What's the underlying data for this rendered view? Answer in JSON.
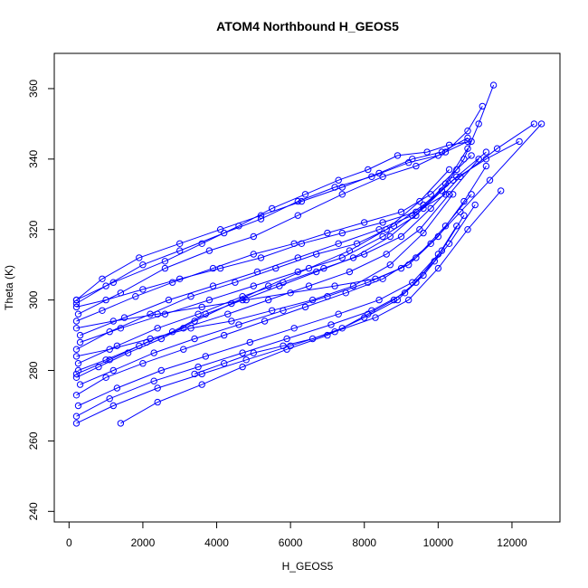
{
  "chart_data": {
    "type": "line",
    "title": "ATOM4 Northbound H_GEOS5",
    "xlabel": "H_GEOS5",
    "ylabel": "Theta (K)",
    "xlim": [
      -400,
      13300
    ],
    "ylim": [
      237,
      370
    ],
    "x_ticks": [
      0,
      2000,
      4000,
      6000,
      8000,
      10000,
      12000
    ],
    "y_ticks": [
      240,
      260,
      280,
      300,
      320,
      340,
      360
    ],
    "grid": false,
    "legend": "none",
    "color": "#0000ff",
    "series": [
      {
        "x": [
          200,
          1200,
          2600,
          3600,
          4600,
          5500,
          6400,
          7300,
          8100,
          8900,
          9700,
          10300,
          10900
        ],
        "y": [
          300,
          305,
          311,
          316,
          321,
          326,
          330,
          334,
          337,
          341,
          342,
          344,
          345
        ]
      },
      {
        "x": [
          200,
          1000,
          2000,
          3000,
          4200,
          5200,
          6200,
          7200,
          8200,
          9200,
          10000,
          10800
        ],
        "y": [
          299,
          304,
          310,
          314,
          319,
          323,
          328,
          332,
          335,
          339,
          341,
          345
        ]
      },
      {
        "x": [
          250,
          1400,
          2600,
          3800,
          5000,
          6200,
          7400,
          8500,
          9400,
          10200,
          10800,
          11200
        ],
        "y": [
          296,
          302,
          309,
          314,
          318,
          324,
          330,
          335,
          338,
          342,
          348,
          355
        ]
      },
      {
        "x": [
          200,
          900,
          1800,
          2800,
          3900,
          5000,
          6100,
          7000,
          8000,
          9000,
          9800,
          10500,
          10900
        ],
        "y": [
          294,
          297,
          301,
          305,
          309,
          313,
          316,
          319,
          322,
          325,
          330,
          337,
          341
        ]
      },
      {
        "x": [
          300,
          1500,
          2700,
          3900,
          5100,
          6200,
          7300,
          8400,
          9300,
          10100,
          10700,
          11100,
          11500
        ],
        "y": [
          290,
          295,
          300,
          304,
          308,
          312,
          316,
          320,
          324,
          331,
          340,
          350,
          361
        ]
      },
      {
        "x": [
          200,
          1100,
          2200,
          3300,
          4500,
          5600,
          6700,
          7800,
          8800,
          9600,
          10400,
          11300,
          12200
        ],
        "y": [
          286,
          291,
          296,
          301,
          305,
          309,
          313,
          316,
          321,
          327,
          334,
          340,
          345
        ]
      },
      {
        "x": [
          250,
          1300,
          2400,
          3500,
          4700,
          5800,
          6900,
          8000,
          9000,
          9800,
          10600,
          11600,
          12600
        ],
        "y": [
          282,
          287,
          292,
          296,
          301,
          305,
          309,
          313,
          318,
          326,
          335,
          343,
          350
        ]
      },
      {
        "x": [
          200,
          1100,
          2100,
          3100,
          4300,
          5400,
          6500,
          7600,
          8600,
          9500,
          10300,
          11100
        ],
        "y": [
          279,
          283,
          288,
          292,
          296,
          300,
          304,
          308,
          313,
          320,
          330,
          340
        ]
      },
      {
        "x": [
          300,
          1200,
          2300,
          3400,
          4600,
          5800,
          7000,
          8100,
          9000,
          9800,
          10600,
          11400,
          12800
        ],
        "y": [
          276,
          280,
          285,
          289,
          293,
          297,
          301,
          305,
          309,
          316,
          325,
          334,
          350
        ]
      },
      {
        "x": [
          200,
          1000,
          2000,
          3100,
          4200,
          5300,
          6400,
          7500,
          8500,
          9400,
          10200,
          10900
        ],
        "y": [
          273,
          278,
          282,
          286,
          290,
          294,
          298,
          302,
          306,
          312,
          321,
          330
        ]
      },
      {
        "x": [
          250,
          1300,
          2500,
          3700,
          4900,
          6100,
          7300,
          8400,
          9300,
          10100,
          10700
        ],
        "y": [
          270,
          275,
          280,
          284,
          288,
          292,
          296,
          300,
          305,
          314,
          324
        ]
      },
      {
        "x": [
          200,
          1100,
          2300,
          3500,
          4700,
          5900,
          7100,
          8200,
          9100,
          9900,
          10500
        ],
        "y": [
          267,
          272,
          277,
          281,
          285,
          289,
          293,
          297,
          302,
          311,
          321
        ]
      },
      {
        "x": [
          200,
          1200,
          2400,
          3600,
          4800,
          6000,
          7200,
          8300,
          9200,
          10000,
          10800,
          11700
        ],
        "y": [
          265,
          270,
          275,
          279,
          283,
          287,
          291,
          295,
          300,
          309,
          320,
          331
        ]
      },
      {
        "x": [
          1400,
          2400,
          3600,
          4700,
          5900,
          7000,
          8000,
          8900,
          9600,
          10300,
          11000
        ],
        "y": [
          265,
          271,
          276,
          281,
          286,
          290,
          295,
          300,
          307,
          316,
          327
        ]
      },
      {
        "x": [
          200,
          900,
          1900,
          3000,
          4100,
          5200,
          6300,
          7400,
          8400,
          9300,
          10100,
          10800
        ],
        "y": [
          300,
          306,
          312,
          316,
          320,
          324,
          328,
          332,
          336,
          340,
          342,
          346
        ]
      },
      {
        "x": [
          200,
          1000,
          2000,
          3000,
          4100,
          5200,
          6300,
          7400,
          8500,
          9400,
          10200
        ],
        "y": [
          298,
          300,
          303,
          306,
          309,
          312,
          316,
          319,
          322,
          325,
          330
        ]
      },
      {
        "x": [
          200,
          1200,
          2400,
          3600,
          4800,
          6000,
          7200,
          8300,
          9200,
          10000,
          10700,
          11300
        ],
        "y": [
          292,
          294,
          296,
          298,
          300,
          302,
          304,
          306,
          310,
          318,
          328,
          338
        ]
      },
      {
        "x": [
          300,
          1400,
          2600,
          3800,
          5000,
          6200,
          7400,
          8500,
          9400,
          10200,
          10800
        ],
        "y": [
          288,
          292,
          296,
          300,
          304,
          308,
          312,
          318,
          324,
          333,
          343
        ]
      },
      {
        "x": [
          200,
          1100,
          2200,
          3300,
          4400,
          5500,
          6600,
          7700,
          8700,
          9600,
          10400
        ],
        "y": [
          284,
          286,
          289,
          292,
          294,
          297,
          300,
          304,
          310,
          319,
          330
        ]
      },
      {
        "x": [
          3400,
          4200,
          5000,
          5800,
          6600,
          7400,
          8100,
          8800,
          9400,
          10000
        ],
        "y": [
          279,
          282,
          285,
          287,
          289,
          292,
          296,
          300,
          305,
          313
        ]
      },
      {
        "x": [
          250,
          1000,
          1900,
          2800,
          3700,
          4700,
          5700,
          6700,
          7700,
          8700,
          9600,
          10500,
          11300
        ],
        "y": [
          280,
          283,
          287,
          291,
          296,
          300,
          304,
          308,
          312,
          318,
          326,
          335,
          342
        ]
      },
      {
        "x": [
          200,
          800,
          1600,
          2500,
          3400,
          4400,
          5400,
          6500,
          7600,
          8600,
          9500,
          10300
        ],
        "y": [
          278,
          281,
          285,
          289,
          294,
          299,
          304,
          309,
          314,
          320,
          328,
          337
        ]
      }
    ]
  }
}
